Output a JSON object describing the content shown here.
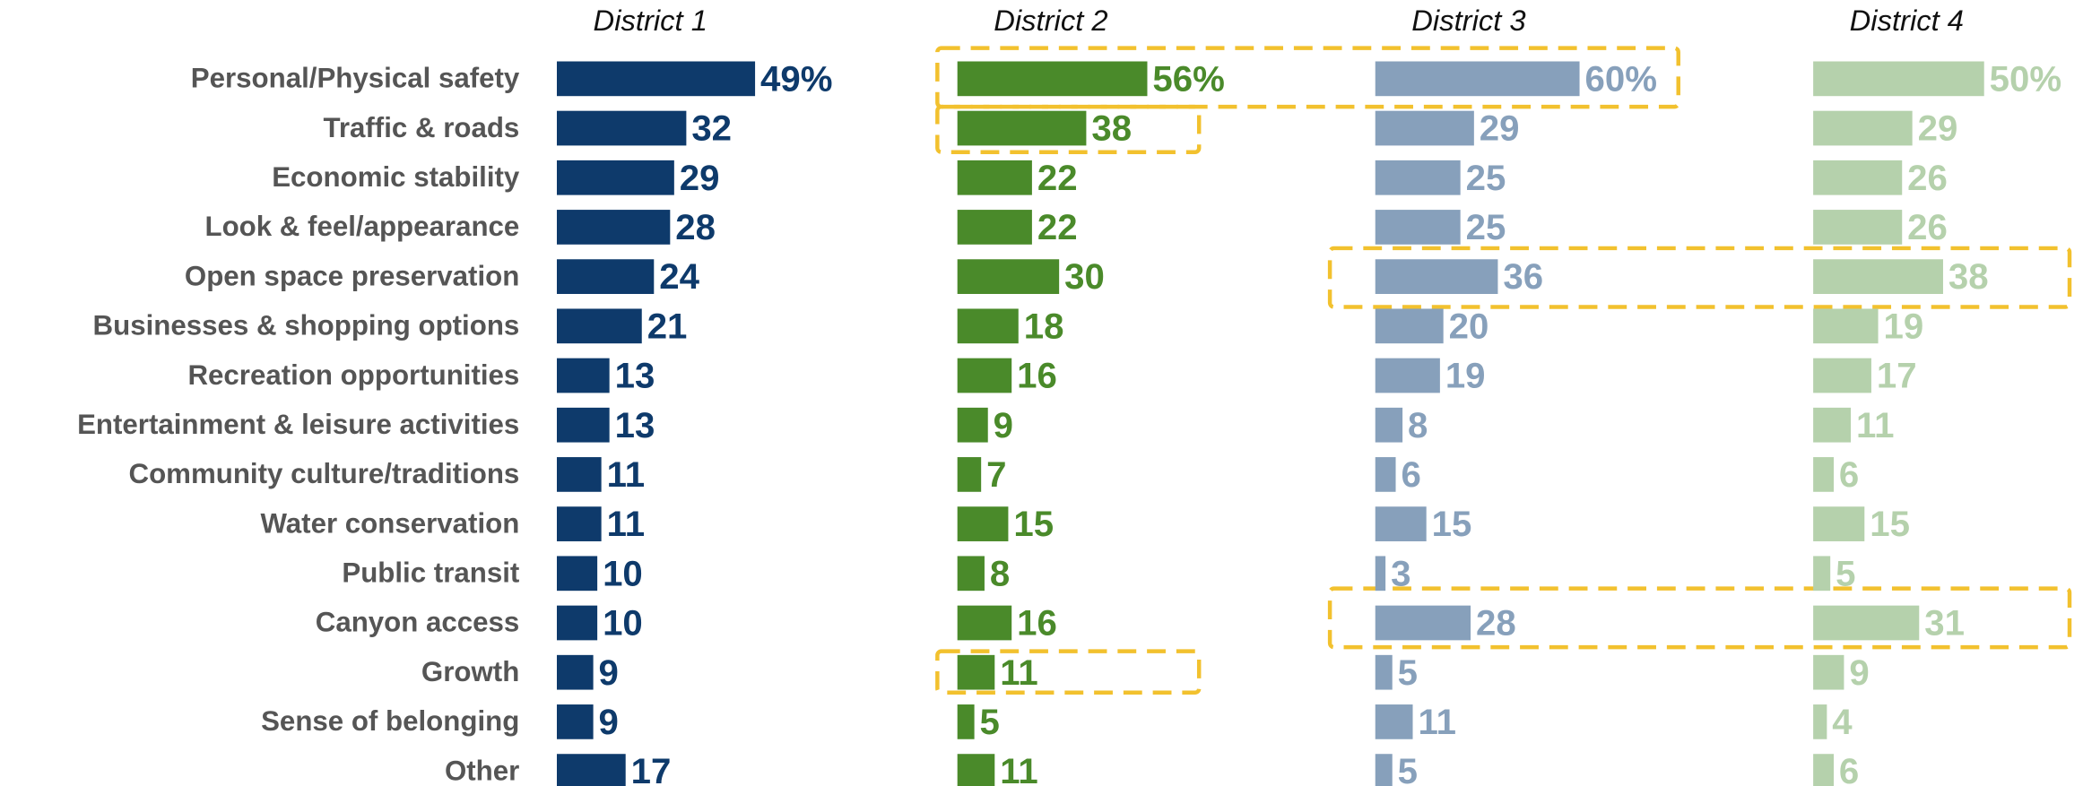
{
  "chart_data": {
    "type": "bar",
    "categories": [
      "Personal/Physical safety",
      "Traffic & roads",
      "Economic stability",
      "Look & feel/appearance",
      "Open space preservation",
      "Businesses & shopping options",
      "Recreation opportunities",
      "Entertainment & leisure activities",
      "Community culture/traditions",
      "Water conservation",
      "Public transit",
      "Canyon access",
      "Growth",
      "Sense of belonging",
      "Other"
    ],
    "series": [
      {
        "name": "District 1",
        "color": "#0e3a6b",
        "values": [
          49,
          32,
          29,
          28,
          24,
          21,
          13,
          13,
          11,
          11,
          10,
          10,
          9,
          9,
          17
        ],
        "value_labels": [
          "49%",
          "32",
          "29",
          "28",
          "24",
          "21",
          "13",
          "13",
          "11",
          "11",
          "10",
          "10",
          "9",
          "9",
          "17"
        ]
      },
      {
        "name": "District 2",
        "color": "#4a8a2a",
        "values": [
          56,
          38,
          22,
          22,
          30,
          18,
          16,
          9,
          7,
          15,
          8,
          16,
          11,
          5,
          11
        ],
        "value_labels": [
          "56%",
          "38",
          "22",
          "22",
          "30",
          "18",
          "16",
          "9",
          "7",
          "15",
          "8",
          "16",
          "11",
          "5",
          "11"
        ]
      },
      {
        "name": "District 3",
        "color": "#87a0bb",
        "values": [
          60,
          29,
          25,
          25,
          36,
          20,
          19,
          8,
          6,
          15,
          3,
          28,
          5,
          11,
          5
        ],
        "value_labels": [
          "60%",
          "29",
          "25",
          "25",
          "36",
          "20",
          "19",
          "8",
          "6",
          "15",
          "3",
          "28",
          "5",
          "11",
          "5"
        ]
      },
      {
        "name": "District 4",
        "color": "#b5d1ac",
        "values": [
          50,
          29,
          26,
          26,
          38,
          19,
          17,
          11,
          6,
          15,
          5,
          31,
          9,
          4,
          6
        ],
        "value_labels": [
          "50%",
          "29",
          "26",
          "26",
          "38",
          "19",
          "17",
          "11",
          "6",
          "15",
          "5",
          "31",
          "9",
          "4",
          "6"
        ]
      }
    ]
  }
}
